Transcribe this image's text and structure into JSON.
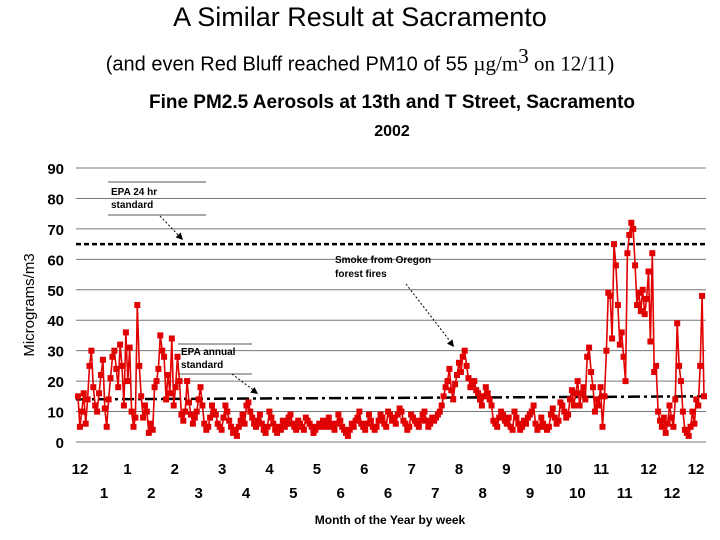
{
  "slide": {
    "title": "A Similar Result at Sacramento",
    "subtitle_prefix": "(and even Red Bluff reached PM10 of 55 ",
    "subtitle_unit": "µg/m",
    "subtitle_unit_exp": "3",
    "subtitle_suffix": " on 12/11)"
  },
  "chart_data": {
    "type": "line",
    "title": "Fine PM2.5 Aerosols at 13th and T Street, Sacramento",
    "subtitle": "2002",
    "ylabel": "Micrograms/m3",
    "xlabel": "Month of the Year by week",
    "ylim": [
      0,
      90
    ],
    "yticks": [
      0,
      10,
      20,
      30,
      40,
      50,
      60,
      70,
      80,
      90
    ],
    "grid": "horizontal",
    "x_tick_labels_row1": [
      "12",
      "1",
      "2",
      "3",
      "4",
      "5",
      "6",
      "7",
      "8",
      "9",
      "10",
      "11",
      "12",
      "12"
    ],
    "x_tick_labels_row2": [
      "1",
      "2",
      "3",
      "4",
      "5",
      "6",
      "6",
      "7",
      "8",
      "9",
      "10",
      "11",
      "12"
    ],
    "series": [
      {
        "color": "#e00000",
        "marker": "square",
        "values": [
          15,
          5,
          10,
          16,
          6,
          14,
          25,
          30,
          18,
          12,
          10,
          16,
          22,
          27,
          11,
          5,
          14,
          21,
          28,
          30,
          24,
          18,
          32,
          25,
          12,
          36,
          20,
          31,
          10,
          5,
          8,
          45,
          25,
          15,
          8,
          12,
          10,
          3,
          6,
          4,
          18,
          20,
          24,
          35,
          30,
          28,
          14,
          22,
          16,
          34,
          12,
          18,
          28,
          20,
          9,
          7,
          10,
          20,
          13,
          9,
          6,
          8,
          10,
          14,
          18,
          12,
          6,
          4,
          5,
          8,
          12,
          10,
          9,
          6,
          5,
          4,
          8,
          12,
          10,
          7,
          5,
          3,
          4,
          2,
          5,
          7,
          9,
          6,
          12,
          13,
          10,
          8,
          6,
          5,
          7,
          9,
          6,
          4,
          3,
          5,
          10,
          8,
          6,
          4,
          3,
          5,
          4,
          7,
          5,
          6,
          8,
          9,
          6,
          5,
          4,
          7,
          6,
          5,
          4,
          8,
          7,
          6,
          5,
          3,
          4,
          5,
          6,
          5,
          7,
          6,
          5,
          8,
          6,
          5,
          4,
          6,
          9,
          7,
          5,
          4,
          3,
          2,
          4,
          6,
          5,
          7,
          8,
          10,
          6,
          5,
          4,
          6,
          9,
          7,
          5,
          4,
          5,
          7,
          9,
          8,
          6,
          5,
          10,
          9,
          7,
          8,
          6,
          9,
          11,
          10,
          7,
          6,
          4,
          5,
          9,
          8,
          7,
          6,
          5,
          7,
          9,
          10,
          7,
          5,
          6,
          8,
          7,
          8,
          9,
          10,
          12,
          15,
          18,
          20,
          24,
          17,
          14,
          19,
          22,
          26,
          23,
          28,
          30,
          25,
          21,
          18,
          19,
          20,
          17,
          16,
          14,
          12,
          15,
          18,
          16,
          14,
          12,
          7,
          6,
          5,
          8,
          10,
          9,
          7,
          6,
          8,
          5,
          4,
          10,
          8,
          6,
          4,
          5,
          7,
          6,
          8,
          9,
          10,
          12,
          6,
          4,
          5,
          8,
          6,
          5,
          4,
          5,
          9,
          11,
          8,
          6,
          7,
          13,
          12,
          10,
          8,
          9,
          14,
          17,
          12,
          16,
          20,
          12,
          16,
          18,
          14,
          28,
          31,
          23,
          18,
          10,
          14,
          12,
          18,
          5,
          15,
          30,
          49,
          48,
          34,
          65,
          58,
          45,
          32,
          36,
          28,
          20,
          62,
          68,
          72,
          70,
          58,
          45,
          49,
          43,
          50,
          42,
          47,
          56,
          33,
          62,
          23,
          25,
          10,
          7,
          5,
          8,
          3,
          6,
          12,
          8,
          5,
          14,
          39,
          25,
          20,
          10,
          4,
          3,
          2,
          5,
          10,
          6,
          14,
          12,
          25,
          48,
          15
        ]
      }
    ],
    "reference_lines": [
      {
        "label": "EPA 24 hr standard",
        "value": 65,
        "style": "dashed"
      },
      {
        "label": "EPA annual standard",
        "value_start": 14,
        "value_end": 15,
        "style": "dash-dot"
      }
    ],
    "annotations": [
      {
        "text_lines": [
          "EPA 24 hr",
          "standard"
        ]
      },
      {
        "text_lines": [
          "Smoke from Oregon",
          "forest fires"
        ]
      },
      {
        "text_lines": [
          "EPA annual",
          "standard"
        ]
      }
    ]
  }
}
